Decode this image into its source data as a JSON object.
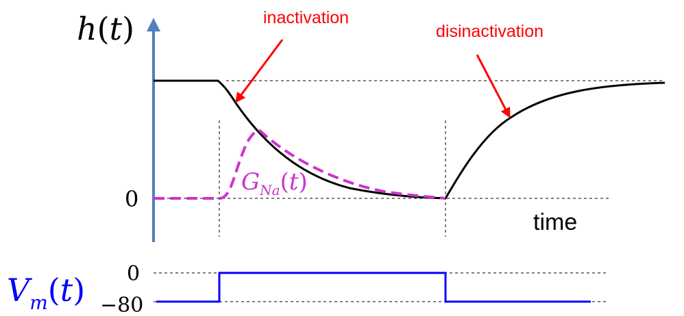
{
  "figure": {
    "h_label": {
      "h": "h",
      "open": "(",
      "t": "t",
      "close": ")"
    },
    "h_zero_tick": "0",
    "time_label": "time",
    "annotations": {
      "inactivation": "inactivation",
      "disinactivation": "disinactivation"
    },
    "gna_label": {
      "g": "G",
      "sub": "Na",
      "open": "(",
      "t": "t",
      "close": ")"
    },
    "vm_label": {
      "v": "V",
      "sub": "m",
      "open": "(",
      "t": "t",
      "close": ")"
    },
    "vm_ticks": {
      "top": "0",
      "bottom": "−80"
    }
  },
  "colors": {
    "axis": "#4f81bd",
    "h_curve": "#000000",
    "gna_curve": "#cc33cc",
    "vm_trace": "#0000ff",
    "annotation": "#ff0000",
    "guide": "#000000"
  }
}
